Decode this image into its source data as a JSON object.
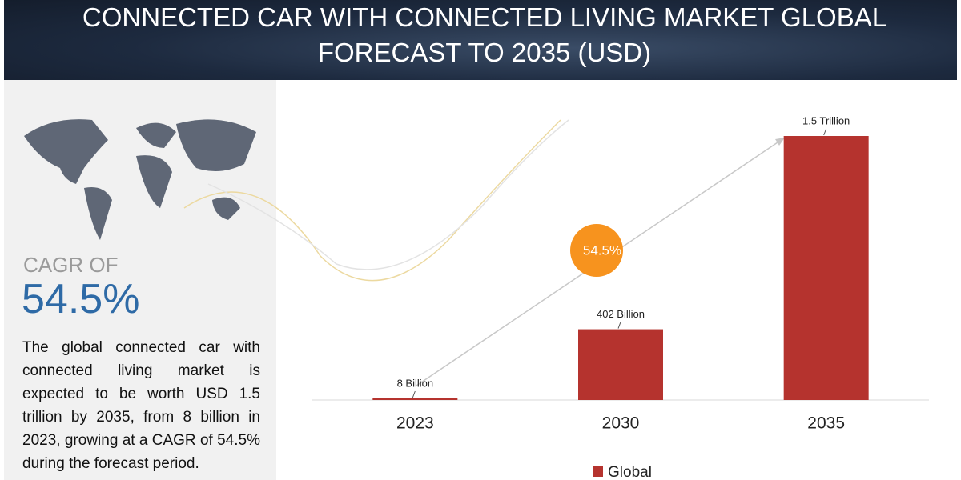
{
  "header": {
    "title": "CONNECTED CAR WITH CONNECTED LIVING MARKET GLOBAL FORECAST TO 2035 (USD)"
  },
  "summary": {
    "cagr_label": "CAGR OF",
    "cagr_value": "54.5%",
    "description": "The global connected car with connected living market is expected to be worth USD 1.5 trillion by 2035, from 8 billion in 2023, growing at a CAGR of 54.5% during the forecast period."
  },
  "chart_data": {
    "type": "bar",
    "categories": [
      "2023",
      "2030",
      "2035"
    ],
    "series": [
      {
        "name": "Global",
        "color": "#b5332e",
        "values": [
          8,
          402,
          1500
        ],
        "value_labels": [
          "8 Billion",
          "402 Billion",
          "1.5 Trillion"
        ]
      }
    ],
    "annotation": "54.5%"
  }
}
